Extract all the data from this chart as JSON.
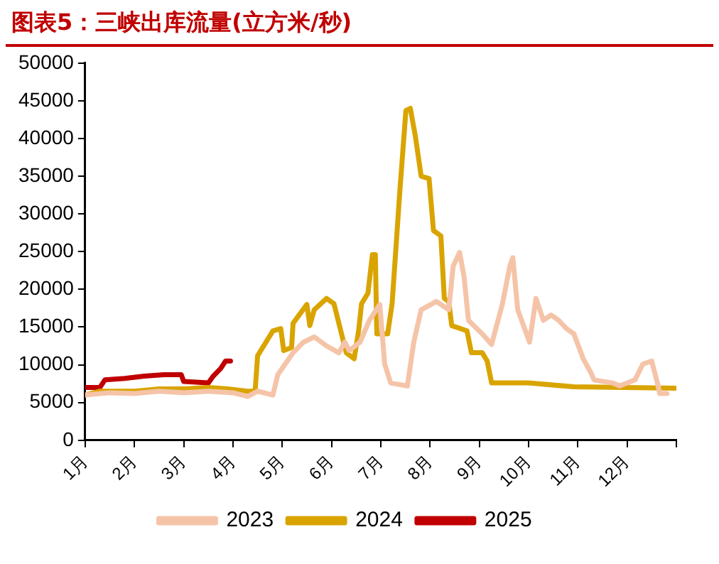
{
  "chart_data": {
    "type": "line",
    "title": "图表5：三峡出库流量(立方米/秒)",
    "xlim": [
      1,
      13
    ],
    "xticks": [
      {
        "value": 1,
        "label": "1月"
      },
      {
        "value": 2,
        "label": "2月"
      },
      {
        "value": 3,
        "label": "3月"
      },
      {
        "value": 4,
        "label": "4月"
      },
      {
        "value": 5,
        "label": "5月"
      },
      {
        "value": 6,
        "label": "6月"
      },
      {
        "value": 7,
        "label": "7月"
      },
      {
        "value": 8,
        "label": "8月"
      },
      {
        "value": 9,
        "label": "9月"
      },
      {
        "value": 10,
        "label": "10月"
      },
      {
        "value": 11,
        "label": "11月"
      },
      {
        "value": 12,
        "label": "12月"
      },
      {
        "value": 13,
        "label": null
      }
    ],
    "ylim": [
      0,
      50000
    ],
    "yticks": [
      0,
      5000,
      10000,
      15000,
      20000,
      25000,
      30000,
      35000,
      40000,
      45000,
      50000
    ],
    "grid": false,
    "legend": "bottom",
    "series": [
      {
        "name": "2023",
        "color": "#f5c4a8",
        "x": [
          1,
          1.5,
          2,
          2.5,
          3,
          3.5,
          4,
          4.3,
          4.5,
          4.81,
          4.91,
          5.22,
          5.43,
          5.65,
          5.9,
          6.15,
          6.27,
          6.36,
          6.58,
          6.77,
          6.98,
          7.08,
          7.2,
          7.54,
          7.67,
          7.82,
          8.13,
          8.38,
          8.47,
          8.6,
          8.69,
          8.78,
          9.06,
          9.25,
          9.47,
          9.62,
          9.68,
          9.78,
          10.02,
          10.15,
          10.3,
          10.46,
          10.61,
          10.77,
          10.92,
          11.11,
          11.26,
          11.33,
          11.7,
          11.85,
          12.16,
          12.32,
          12.5,
          12.63,
          12.66,
          12.81
        ],
        "values": [
          6000,
          6300,
          6200,
          6500,
          6300,
          6500,
          6300,
          5800,
          6500,
          6000,
          8700,
          11600,
          13000,
          13700,
          12500,
          11600,
          13000,
          11900,
          13000,
          15900,
          18000,
          10100,
          7600,
          7200,
          13000,
          17300,
          18400,
          17300,
          23100,
          24900,
          21700,
          15900,
          14100,
          12700,
          18100,
          23100,
          24200,
          17300,
          13000,
          18800,
          15900,
          16600,
          15900,
          14800,
          14100,
          10800,
          9000,
          8000,
          7600,
          7200,
          8000,
          10100,
          10500,
          7200,
          6200,
          6200
        ]
      },
      {
        "name": "2024",
        "color": "#d9a400",
        "x": [
          1,
          1.3,
          2,
          2.5,
          3,
          3.5,
          3.9,
          4.29,
          4.45,
          4.5,
          4.81,
          4.97,
          5.03,
          5.19,
          5.22,
          5.5,
          5.56,
          5.65,
          5.9,
          6.05,
          6.3,
          6.46,
          6.55,
          6.61,
          6.74,
          6.83,
          6.89,
          6.92,
          7.14,
          7.23,
          7.39,
          7.51,
          7.6,
          7.7,
          7.82,
          7.98,
          8.07,
          8.22,
          8.29,
          8.38,
          8.44,
          8.75,
          8.84,
          9.06,
          9.16,
          9.25,
          9.99,
          10.92,
          13
        ],
        "values": [
          6000,
          6500,
          6500,
          6800,
          6800,
          7000,
          6800,
          6500,
          6500,
          11200,
          14500,
          14800,
          11900,
          12300,
          15500,
          18000,
          15200,
          17300,
          18800,
          18100,
          11600,
          10800,
          14500,
          18100,
          19500,
          24600,
          24600,
          14100,
          14100,
          18100,
          33300,
          43700,
          44000,
          40400,
          35000,
          34700,
          27800,
          27100,
          18800,
          18400,
          15200,
          14500,
          11600,
          11600,
          10500,
          7600,
          7600,
          7100,
          6900
        ]
      },
      {
        "name": "2025",
        "color": "#c00000",
        "x": [
          1,
          1.3,
          1.4,
          1.8,
          2.2,
          2.6,
          2.95,
          3,
          3.5,
          3.6,
          3.75,
          3.85,
          3.95
        ],
        "values": [
          7000,
          7000,
          8000,
          8200,
          8500,
          8700,
          8700,
          7800,
          7600,
          8500,
          9500,
          10500,
          10500
        ]
      }
    ]
  }
}
